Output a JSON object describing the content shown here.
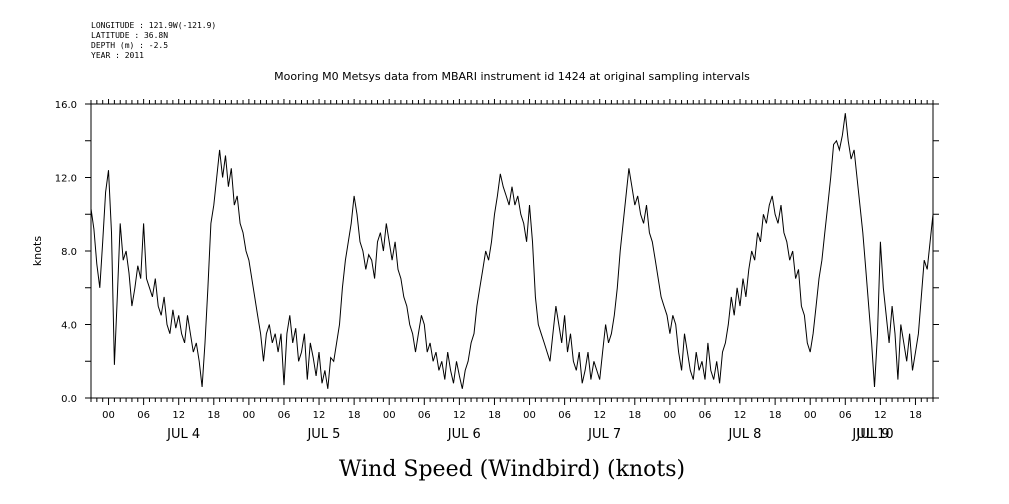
{
  "meta": {
    "longitude": "LONGITUDE : 121.9W(-121.9)",
    "latitude": "LATITUDE : 36.8N",
    "depth": "DEPTH (m) : -2.5",
    "year": "YEAR : 2011"
  },
  "chart_data": {
    "type": "line",
    "title": "Mooring M0 Metsys data from MBARI instrument id 1424 at original sampling intervals",
    "xlabel": "Wind Speed (Windbird) (knots)",
    "ylabel": "knots",
    "ylim": [
      0,
      16
    ],
    "yticks": [
      "0.0",
      "4.0",
      "8.0",
      "12.0",
      "16.0"
    ],
    "x_unit": "hours since 2011-07-04 00:00",
    "xlim": [
      -3,
      141
    ],
    "hour_ticks": [
      {
        "h": 0,
        "label": "00"
      },
      {
        "h": 6,
        "label": "06"
      },
      {
        "h": 12,
        "label": "12"
      },
      {
        "h": 18,
        "label": "18"
      },
      {
        "h": 24,
        "label": "00"
      },
      {
        "h": 30,
        "label": "06"
      },
      {
        "h": 36,
        "label": "12"
      },
      {
        "h": 42,
        "label": "18"
      },
      {
        "h": 48,
        "label": "00"
      },
      {
        "h": 54,
        "label": "06"
      },
      {
        "h": 60,
        "label": "12"
      },
      {
        "h": 66,
        "label": "18"
      },
      {
        "h": 72,
        "label": "00"
      },
      {
        "h": 78,
        "label": "06"
      },
      {
        "h": 84,
        "label": "12"
      },
      {
        "h": 90,
        "label": "18"
      },
      {
        "h": 96,
        "label": "00"
      },
      {
        "h": 102,
        "label": "06"
      },
      {
        "h": 108,
        "label": "12"
      },
      {
        "h": 114,
        "label": "18"
      },
      {
        "h": 120,
        "label": "00"
      },
      {
        "h": 126,
        "label": "06"
      },
      {
        "h": 132,
        "label": "12"
      },
      {
        "h": 138,
        "label": "18"
      }
    ],
    "day_labels": [
      {
        "h": 6,
        "label": "JUL  4"
      },
      {
        "h": 30,
        "label": "JUL  5"
      },
      {
        "h": 54,
        "label": "JUL  6"
      },
      {
        "h": 78,
        "label": "JUL  7"
      },
      {
        "h": 102,
        "label": "JUL  8"
      },
      {
        "h": 126,
        "label": "JUL  9"
      },
      {
        "h": 148,
        "label": "JUL  10"
      }
    ],
    "series": [
      {
        "points": [
          [
            -3,
            10.3
          ],
          [
            -2.5,
            9.2
          ],
          [
            -2,
            7.3
          ],
          [
            -1.5,
            6.0
          ],
          [
            -1,
            8.5
          ],
          [
            -0.5,
            11.2
          ],
          [
            0,
            12.4
          ],
          [
            0.5,
            9.0
          ],
          [
            1,
            1.8
          ],
          [
            1.5,
            5.5
          ],
          [
            2,
            9.5
          ],
          [
            2.5,
            7.5
          ],
          [
            3,
            8.0
          ],
          [
            3.5,
            6.8
          ],
          [
            4,
            5.0
          ],
          [
            4.5,
            6.0
          ],
          [
            5,
            7.2
          ],
          [
            5.5,
            6.5
          ],
          [
            6,
            9.5
          ],
          [
            6.5,
            6.5
          ],
          [
            7,
            6.0
          ],
          [
            7.5,
            5.5
          ],
          [
            8,
            6.5
          ],
          [
            8.5,
            5.0
          ],
          [
            9,
            4.5
          ],
          [
            9.5,
            5.5
          ],
          [
            10,
            4.0
          ],
          [
            10.5,
            3.5
          ],
          [
            11,
            4.8
          ],
          [
            11.5,
            3.8
          ],
          [
            12,
            4.5
          ],
          [
            12.5,
            3.5
          ],
          [
            13,
            3.0
          ],
          [
            13.5,
            4.5
          ],
          [
            14,
            3.5
          ],
          [
            14.5,
            2.5
          ],
          [
            15,
            3.0
          ],
          [
            15.5,
            2.0
          ],
          [
            16,
            0.6
          ],
          [
            16.5,
            3.0
          ],
          [
            17,
            6.0
          ],
          [
            17.5,
            9.5
          ],
          [
            18,
            10.5
          ],
          [
            18.5,
            12.0
          ],
          [
            19,
            13.5
          ],
          [
            19.5,
            12.0
          ],
          [
            20,
            13.2
          ],
          [
            20.5,
            11.5
          ],
          [
            21,
            12.5
          ],
          [
            21.5,
            10.5
          ],
          [
            22,
            11.0
          ],
          [
            22.5,
            9.5
          ],
          [
            23,
            9.0
          ],
          [
            23.5,
            8.0
          ],
          [
            24,
            7.5
          ],
          [
            24.5,
            6.5
          ],
          [
            25,
            5.5
          ],
          [
            25.5,
            4.5
          ],
          [
            26,
            3.5
          ],
          [
            26.5,
            2.0
          ],
          [
            27,
            3.5
          ],
          [
            27.5,
            4.0
          ],
          [
            28,
            3.0
          ],
          [
            28.5,
            3.5
          ],
          [
            29,
            2.5
          ],
          [
            29.5,
            3.5
          ],
          [
            30,
            0.7
          ],
          [
            30.5,
            3.5
          ],
          [
            31,
            4.5
          ],
          [
            31.5,
            3.0
          ],
          [
            32,
            3.8
          ],
          [
            32.5,
            2.0
          ],
          [
            33,
            2.5
          ],
          [
            33.5,
            3.5
          ],
          [
            34,
            1.0
          ],
          [
            34.5,
            3.0
          ],
          [
            35,
            2.2
          ],
          [
            35.5,
            1.2
          ],
          [
            36,
            2.5
          ],
          [
            36.5,
            0.8
          ],
          [
            37,
            1.5
          ],
          [
            37.5,
            0.5
          ],
          [
            38,
            2.2
          ],
          [
            38.5,
            2.0
          ],
          [
            39,
            3.0
          ],
          [
            39.5,
            4.0
          ],
          [
            40,
            6.0
          ],
          [
            40.5,
            7.5
          ],
          [
            41,
            8.5
          ],
          [
            41.5,
            9.5
          ],
          [
            42,
            11.0
          ],
          [
            42.5,
            10.0
          ],
          [
            43,
            8.5
          ],
          [
            43.5,
            8.0
          ],
          [
            44,
            7.0
          ],
          [
            44.5,
            7.8
          ],
          [
            45,
            7.5
          ],
          [
            45.5,
            6.5
          ],
          [
            46,
            8.5
          ],
          [
            46.5,
            9.0
          ],
          [
            47,
            8.0
          ],
          [
            47.5,
            9.5
          ],
          [
            48,
            8.5
          ],
          [
            48.5,
            7.5
          ],
          [
            49,
            8.5
          ],
          [
            49.5,
            7.0
          ],
          [
            50,
            6.5
          ],
          [
            50.5,
            5.5
          ],
          [
            51,
            5.0
          ],
          [
            51.5,
            4.0
          ],
          [
            52,
            3.5
          ],
          [
            52.5,
            2.5
          ],
          [
            53,
            3.5
          ],
          [
            53.5,
            4.5
          ],
          [
            54,
            4.0
          ],
          [
            54.5,
            2.5
          ],
          [
            55,
            3.0
          ],
          [
            55.5,
            2.0
          ],
          [
            56,
            2.5
          ],
          [
            56.5,
            1.5
          ],
          [
            57,
            2.0
          ],
          [
            57.5,
            1.0
          ],
          [
            58,
            2.5
          ],
          [
            58.5,
            1.5
          ],
          [
            59,
            0.8
          ],
          [
            59.5,
            2.0
          ],
          [
            60,
            1.2
          ],
          [
            60.5,
            0.5
          ],
          [
            61,
            1.5
          ],
          [
            61.5,
            2.0
          ],
          [
            62,
            3.0
          ],
          [
            62.5,
            3.5
          ],
          [
            63,
            5.0
          ],
          [
            63.5,
            6.0
          ],
          [
            64,
            7.0
          ],
          [
            64.5,
            8.0
          ],
          [
            65,
            7.5
          ],
          [
            65.5,
            8.5
          ],
          [
            66,
            10.0
          ],
          [
            66.5,
            11.0
          ],
          [
            67,
            12.2
          ],
          [
            67.5,
            11.5
          ],
          [
            68,
            11.0
          ],
          [
            68.5,
            10.5
          ],
          [
            69,
            11.5
          ],
          [
            69.5,
            10.5
          ],
          [
            70,
            11.0
          ],
          [
            70.5,
            10.0
          ],
          [
            71,
            9.5
          ],
          [
            71.5,
            8.5
          ],
          [
            72,
            10.5
          ],
          [
            72.5,
            8.5
          ],
          [
            73,
            5.5
          ],
          [
            73.5,
            4.0
          ],
          [
            74,
            3.5
          ],
          [
            74.5,
            3.0
          ],
          [
            75,
            2.5
          ],
          [
            75.5,
            2.0
          ],
          [
            76,
            3.5
          ],
          [
            76.5,
            5.0
          ],
          [
            77,
            4.0
          ],
          [
            77.5,
            3.0
          ],
          [
            78,
            4.5
          ],
          [
            78.5,
            2.5
          ],
          [
            79,
            3.5
          ],
          [
            79.5,
            2.0
          ],
          [
            80,
            1.5
          ],
          [
            80.5,
            2.5
          ],
          [
            81,
            0.8
          ],
          [
            81.5,
            1.5
          ],
          [
            82,
            2.5
          ],
          [
            82.5,
            1.0
          ],
          [
            83,
            2.0
          ],
          [
            83.5,
            1.5
          ],
          [
            84,
            1.0
          ],
          [
            84.5,
            2.5
          ],
          [
            85,
            4.0
          ],
          [
            85.5,
            3.0
          ],
          [
            86,
            3.5
          ],
          [
            86.5,
            4.5
          ],
          [
            87,
            6.0
          ],
          [
            87.5,
            8.0
          ],
          [
            88,
            9.5
          ],
          [
            88.5,
            11.0
          ],
          [
            89,
            12.5
          ],
          [
            89.5,
            11.5
          ],
          [
            90,
            10.5
          ],
          [
            90.5,
            11.0
          ],
          [
            91,
            10.0
          ],
          [
            91.5,
            9.5
          ],
          [
            92,
            10.5
          ],
          [
            92.5,
            9.0
          ],
          [
            93,
            8.5
          ],
          [
            93.5,
            7.5
          ],
          [
            94,
            6.5
          ],
          [
            94.5,
            5.5
          ],
          [
            95,
            5.0
          ],
          [
            95.5,
            4.5
          ],
          [
            96,
            3.5
          ],
          [
            96.5,
            4.5
          ],
          [
            97,
            4.0
          ],
          [
            97.5,
            2.5
          ],
          [
            98,
            1.5
          ],
          [
            98.5,
            3.5
          ],
          [
            99,
            2.5
          ],
          [
            99.5,
            1.5
          ],
          [
            100,
            1.0
          ],
          [
            100.5,
            2.5
          ],
          [
            101,
            1.5
          ],
          [
            101.5,
            2.0
          ],
          [
            102,
            1.0
          ],
          [
            102.5,
            3.0
          ],
          [
            103,
            1.5
          ],
          [
            103.5,
            1.0
          ],
          [
            104,
            2.0
          ],
          [
            104.5,
            0.8
          ],
          [
            105,
            2.5
          ],
          [
            105.5,
            3.0
          ],
          [
            106,
            4.0
          ],
          [
            106.5,
            5.5
          ],
          [
            107,
            4.5
          ],
          [
            107.5,
            6.0
          ],
          [
            108,
            5.0
          ],
          [
            108.5,
            6.5
          ],
          [
            109,
            5.5
          ],
          [
            109.5,
            7.0
          ],
          [
            110,
            8.0
          ],
          [
            110.5,
            7.5
          ],
          [
            111,
            9.0
          ],
          [
            111.5,
            8.5
          ],
          [
            112,
            10.0
          ],
          [
            112.5,
            9.5
          ],
          [
            113,
            10.5
          ],
          [
            113.5,
            11.0
          ],
          [
            114,
            10.0
          ],
          [
            114.5,
            9.5
          ],
          [
            115,
            10.5
          ],
          [
            115.5,
            9.0
          ],
          [
            116,
            8.5
          ],
          [
            116.5,
            7.5
          ],
          [
            117,
            8.0
          ],
          [
            117.5,
            6.5
          ],
          [
            118,
            7.0
          ],
          [
            118.5,
            5.0
          ],
          [
            119,
            4.5
          ],
          [
            119.5,
            3.0
          ],
          [
            120,
            2.5
          ],
          [
            120.5,
            3.5
          ],
          [
            121,
            5.0
          ],
          [
            121.5,
            6.5
          ],
          [
            122,
            7.5
          ],
          [
            122.5,
            9.0
          ],
          [
            123,
            10.5
          ],
          [
            123.5,
            12.0
          ],
          [
            124,
            13.8
          ],
          [
            124.5,
            14.0
          ],
          [
            125,
            13.5
          ],
          [
            125.5,
            14.3
          ],
          [
            126,
            15.5
          ],
          [
            126.5,
            14.0
          ],
          [
            127,
            13.0
          ],
          [
            127.5,
            13.5
          ],
          [
            128,
            12.0
          ],
          [
            128.5,
            10.5
          ],
          [
            129,
            9.0
          ],
          [
            129.5,
            7.0
          ],
          [
            130,
            5.0
          ],
          [
            130.5,
            3.0
          ],
          [
            131,
            0.6
          ],
          [
            131.5,
            3.5
          ],
          [
            132,
            8.5
          ],
          [
            132.5,
            6.0
          ],
          [
            133,
            4.5
          ],
          [
            133.5,
            3.0
          ],
          [
            134,
            5.0
          ],
          [
            134.5,
            3.5
          ],
          [
            135,
            1.0
          ],
          [
            135.5,
            4.0
          ],
          [
            136,
            3.0
          ],
          [
            136.5,
            2.0
          ],
          [
            137,
            3.5
          ],
          [
            137.5,
            1.5
          ],
          [
            138,
            2.5
          ],
          [
            138.5,
            3.5
          ],
          [
            139,
            5.5
          ],
          [
            139.5,
            7.5
          ],
          [
            140,
            7.0
          ],
          [
            140.5,
            8.5
          ],
          [
            141,
            10.0
          ]
        ]
      }
    ]
  }
}
